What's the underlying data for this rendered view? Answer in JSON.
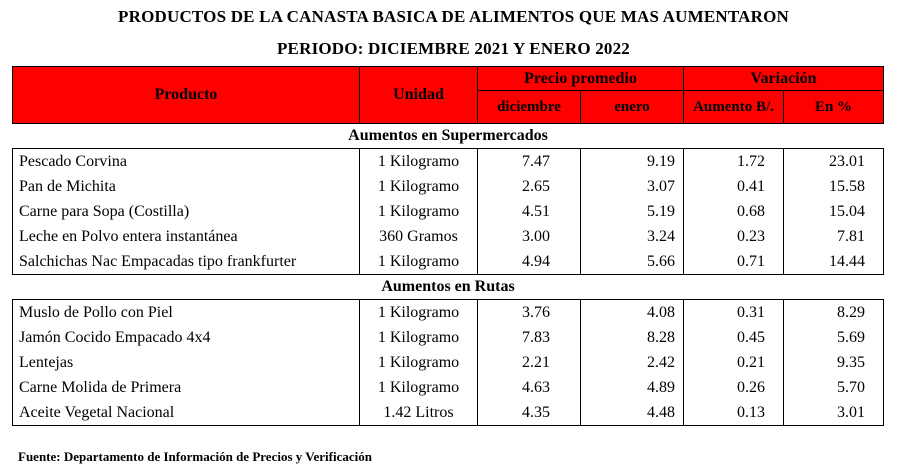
{
  "title_line1": "PRODUCTOS DE LA CANASTA BASICA DE ALIMENTOS QUE MAS AUMENTARON",
  "title_line2": "PERIODO: DICIEMBRE 2021 Y ENERO 2022",
  "header": {
    "producto": "Producto",
    "unidad": "Unidad",
    "precio_promedio": "Precio promedio",
    "variacion": "Variación",
    "diciembre": "diciembre",
    "enero": "enero",
    "aumento": "Aumento B/.",
    "en_pct": "En %"
  },
  "sections": [
    {
      "title": "Aumentos en Supermercados",
      "rows": [
        {
          "producto": "Pescado Corvina",
          "unidad": "1 Kilogramo",
          "diciembre": "7.47",
          "enero": "9.19",
          "aumento": "1.72",
          "pct": "23.01"
        },
        {
          "producto": "Pan de Michita",
          "unidad": "1 Kilogramo",
          "diciembre": "2.65",
          "enero": "3.07",
          "aumento": "0.41",
          "pct": "15.58"
        },
        {
          "producto": "Carne para Sopa (Costilla)",
          "unidad": "1 Kilogramo",
          "diciembre": "4.51",
          "enero": "5.19",
          "aumento": "0.68",
          "pct": "15.04"
        },
        {
          "producto": "Leche en Polvo entera instantánea",
          "unidad": "360 Gramos",
          "diciembre": "3.00",
          "enero": "3.24",
          "aumento": "0.23",
          "pct": "7.81"
        },
        {
          "producto": "Salchichas Nac Empacadas tipo frankfurter",
          "unidad": "1 Kilogramo",
          "diciembre": "4.94",
          "enero": "5.66",
          "aumento": "0.71",
          "pct": "14.44"
        }
      ]
    },
    {
      "title": "Aumentos en Rutas",
      "rows": [
        {
          "producto": "Muslo de Pollo con Piel",
          "unidad": "1 Kilogramo",
          "diciembre": "3.76",
          "enero": "4.08",
          "aumento": "0.31",
          "pct": "8.29"
        },
        {
          "producto": "Jamón Cocido Empacado 4x4",
          "unidad": "1 Kilogramo",
          "diciembre": "7.83",
          "enero": "8.28",
          "aumento": "0.45",
          "pct": "5.69"
        },
        {
          "producto": "Lentejas",
          "unidad": "1 Kilogramo",
          "diciembre": "2.21",
          "enero": "2.42",
          "aumento": "0.21",
          "pct": "9.35"
        },
        {
          "producto": "Carne Molida de Primera",
          "unidad": "1 Kilogramo",
          "diciembre": "4.63",
          "enero": "4.89",
          "aumento": "0.26",
          "pct": "5.70"
        },
        {
          "producto": "Aceite Vegetal Nacional",
          "unidad": "1.42 Litros",
          "diciembre": "4.35",
          "enero": "4.48",
          "aumento": "0.13",
          "pct": "3.01"
        }
      ]
    }
  ],
  "source": "Fuente:  Departamento de Información  de Precios y Verificación",
  "colors": {
    "header_bg": "#ff0000"
  }
}
